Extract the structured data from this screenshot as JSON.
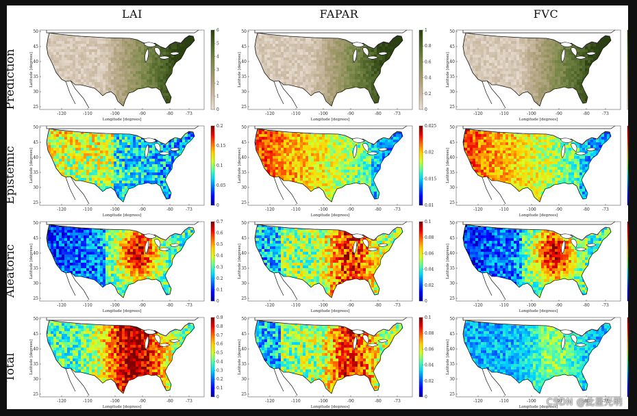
{
  "columns": [
    {
      "title": "LAI",
      "key": "lai"
    },
    {
      "title": "FAPAR",
      "key": "fapar"
    },
    {
      "title": "FVC",
      "key": "fvc"
    }
  ],
  "rows": [
    {
      "title": "Prediction",
      "palette": "green"
    },
    {
      "title": "Epistemic",
      "palette": "jet"
    },
    {
      "title": "Aleatoric",
      "palette": "jet"
    },
    {
      "title": "Total",
      "palette": "jet"
    }
  ],
  "axes": {
    "xlabel": "Longitude [degrees]",
    "ylabel": "Latitude [degrees]",
    "xticks": [
      "-120",
      "-110",
      "-100",
      "-90",
      "-80",
      "-73"
    ],
    "yticks": [
      "50",
      "45",
      "40",
      "35",
      "30",
      "25"
    ]
  },
  "colorbar_ticks": [
    [
      [
        "6",
        "5",
        "4",
        "3",
        "2",
        "1",
        "0"
      ],
      [
        "1",
        "0.8",
        "0.6",
        "0.4",
        "0.2",
        "0"
      ],
      [
        "1",
        "0.8",
        "0.6",
        "0.4",
        "0.2",
        "0"
      ]
    ],
    [
      [
        "0.2",
        "0.15",
        "0.1",
        "0.05",
        "0"
      ],
      [
        "0.025",
        "0.02",
        "0.015",
        "0.01"
      ],
      [
        "0.035",
        "0.03",
        "0.025",
        "0.02",
        "0.015",
        "0.01",
        "0.005",
        "0"
      ]
    ],
    [
      [
        "0.7",
        "0.6",
        "0.5",
        "0.4",
        "0.3",
        "0.2",
        "0.1",
        "0"
      ],
      [
        "0.1",
        "0.08",
        "0.06",
        "0.04",
        "0.02",
        "0"
      ],
      [
        "0.15",
        "0.1",
        "0.05",
        "0"
      ]
    ],
    [
      [
        "0.9",
        "0.8",
        "0.7",
        "0.6",
        "0.5",
        "0.4",
        "0.3",
        "0.2",
        "0.1",
        "0"
      ],
      [
        "0.1",
        "0.08",
        "0.06",
        "0.04",
        "0.02",
        "0"
      ],
      [
        "0.15",
        "0.1",
        "0.05",
        "0"
      ]
    ]
  ],
  "map_patterns": [
    [
      "east-high",
      "east-high",
      "east-high"
    ],
    [
      "west-high-blue-east",
      "west-high",
      "west-high"
    ],
    [
      "central-high-blue-west",
      "central-high",
      "central-high-blue-west"
    ],
    [
      "central-high-strong",
      "central-high",
      "mostly-blue"
    ]
  ],
  "colors": {
    "green_low": "#e9dfd3",
    "green_high": "#2c3f10",
    "background": "#101010"
  },
  "watermark": "CSDN @此星光明"
}
